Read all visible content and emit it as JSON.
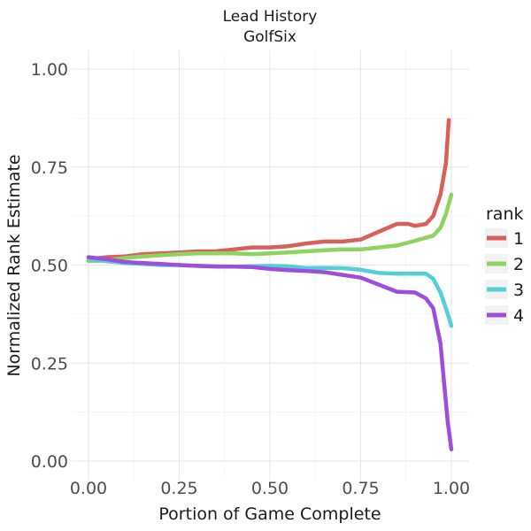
{
  "chart_data": {
    "type": "line",
    "title": "Lead History",
    "subtitle": "GolfSix",
    "xlabel": "Portion of Game Complete",
    "ylabel": "Normalized Rank Estimate",
    "xlim": [
      0,
      1
    ],
    "ylim": [
      0,
      1
    ],
    "x_ticks": [
      "0.00",
      "0.25",
      "0.50",
      "0.75",
      "1.00"
    ],
    "y_ticks": [
      "0.00",
      "0.25",
      "0.50",
      "0.75",
      "1.00"
    ],
    "grid": true,
    "legend": {
      "title": "rank",
      "position": "right"
    },
    "series": [
      {
        "name": "1",
        "color": "#d95f5a",
        "points": [
          [
            0,
            0.515
          ],
          [
            0.05,
            0.52
          ],
          [
            0.1,
            0.522
          ],
          [
            0.15,
            0.528
          ],
          [
            0.2,
            0.53
          ],
          [
            0.25,
            0.532
          ],
          [
            0.3,
            0.535
          ],
          [
            0.35,
            0.535
          ],
          [
            0.4,
            0.54
          ],
          [
            0.45,
            0.545
          ],
          [
            0.5,
            0.545
          ],
          [
            0.55,
            0.548
          ],
          [
            0.6,
            0.555
          ],
          [
            0.65,
            0.56
          ],
          [
            0.7,
            0.56
          ],
          [
            0.75,
            0.565
          ],
          [
            0.8,
            0.585
          ],
          [
            0.85,
            0.605
          ],
          [
            0.88,
            0.605
          ],
          [
            0.9,
            0.6
          ],
          [
            0.93,
            0.605
          ],
          [
            0.95,
            0.625
          ],
          [
            0.97,
            0.68
          ],
          [
            0.985,
            0.76
          ],
          [
            0.993,
            0.87
          ]
        ]
      },
      {
        "name": "2",
        "color": "#8dd35f",
        "points": [
          [
            0,
            0.51
          ],
          [
            0.05,
            0.512
          ],
          [
            0.1,
            0.518
          ],
          [
            0.15,
            0.522
          ],
          [
            0.2,
            0.525
          ],
          [
            0.25,
            0.528
          ],
          [
            0.3,
            0.53
          ],
          [
            0.35,
            0.53
          ],
          [
            0.4,
            0.53
          ],
          [
            0.45,
            0.528
          ],
          [
            0.5,
            0.53
          ],
          [
            0.55,
            0.532
          ],
          [
            0.6,
            0.535
          ],
          [
            0.65,
            0.538
          ],
          [
            0.7,
            0.54
          ],
          [
            0.75,
            0.54
          ],
          [
            0.8,
            0.545
          ],
          [
            0.85,
            0.55
          ],
          [
            0.9,
            0.562
          ],
          [
            0.95,
            0.575
          ],
          [
            0.97,
            0.595
          ],
          [
            0.985,
            0.63
          ],
          [
            1.0,
            0.68
          ]
        ]
      },
      {
        "name": "3",
        "color": "#54cfd6",
        "points": [
          [
            0,
            0.515
          ],
          [
            0.05,
            0.51
          ],
          [
            0.1,
            0.505
          ],
          [
            0.15,
            0.503
          ],
          [
            0.2,
            0.5
          ],
          [
            0.25,
            0.5
          ],
          [
            0.3,
            0.498
          ],
          [
            0.35,
            0.497
          ],
          [
            0.4,
            0.496
          ],
          [
            0.45,
            0.497
          ],
          [
            0.5,
            0.498
          ],
          [
            0.55,
            0.497
          ],
          [
            0.6,
            0.492
          ],
          [
            0.65,
            0.493
          ],
          [
            0.7,
            0.492
          ],
          [
            0.75,
            0.488
          ],
          [
            0.8,
            0.48
          ],
          [
            0.85,
            0.478
          ],
          [
            0.9,
            0.478
          ],
          [
            0.93,
            0.478
          ],
          [
            0.95,
            0.465
          ],
          [
            0.97,
            0.43
          ],
          [
            0.985,
            0.39
          ],
          [
            1.0,
            0.345
          ]
        ]
      },
      {
        "name": "4",
        "color": "#9d4fdc",
        "points": [
          [
            0,
            0.52
          ],
          [
            0.05,
            0.515
          ],
          [
            0.1,
            0.508
          ],
          [
            0.15,
            0.505
          ],
          [
            0.2,
            0.503
          ],
          [
            0.25,
            0.5
          ],
          [
            0.3,
            0.498
          ],
          [
            0.35,
            0.496
          ],
          [
            0.4,
            0.496
          ],
          [
            0.45,
            0.495
          ],
          [
            0.5,
            0.49
          ],
          [
            0.55,
            0.487
          ],
          [
            0.6,
            0.485
          ],
          [
            0.65,
            0.482
          ],
          [
            0.7,
            0.475
          ],
          [
            0.75,
            0.468
          ],
          [
            0.8,
            0.45
          ],
          [
            0.85,
            0.432
          ],
          [
            0.9,
            0.43
          ],
          [
            0.93,
            0.415
          ],
          [
            0.95,
            0.39
          ],
          [
            0.97,
            0.3
          ],
          [
            0.98,
            0.2
          ],
          [
            0.99,
            0.1
          ],
          [
            1.0,
            0.03
          ]
        ]
      }
    ]
  }
}
